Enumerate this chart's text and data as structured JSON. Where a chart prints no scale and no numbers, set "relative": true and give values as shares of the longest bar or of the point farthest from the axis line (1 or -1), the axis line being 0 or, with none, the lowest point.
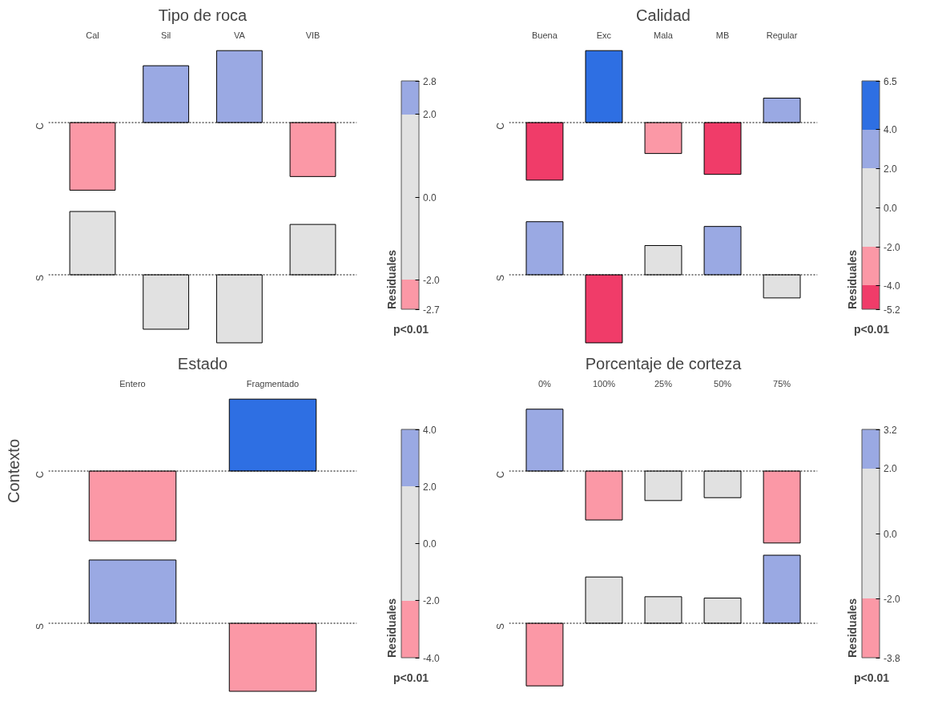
{
  "chart_data": [
    {
      "type": "bar",
      "title": "Tipo de roca",
      "relative": true,
      "categories": [
        "Cal",
        "Sil",
        "VA",
        "VIB"
      ],
      "series": [
        {
          "name": "C",
          "values": [
            -0.94,
            0.79,
            1,
            -0.75
          ],
          "colors": [
            "#fb98a6",
            "#9aa9e3",
            "#9aa9e3",
            "#fb98a6"
          ]
        }
      ],
      "ref_lines": [
        {
          "axis": "y",
          "value": 0,
          "line_style": "dotted",
          "color": "#000000"
        }
      ],
      "clabel": "Residuales",
      "clim": [
        -2.7,
        2.8
      ],
      "cticks": [
        {
          "value": -2.7,
          "label": "-2.7"
        },
        {
          "value": -2.0,
          "label": "-2.0"
        },
        {
          "value": 0,
          "label": "0.0"
        },
        {
          "value": 2.0,
          "label": "2.0"
        },
        {
          "value": 2.8,
          "label": "2.8"
        }
      ],
      "annotations": [
        "p<0.01"
      ]
    },
    {
      "type": "bar",
      "relative": true,
      "tick_labels": false,
      "categories": [
        null,
        null,
        null,
        null
      ],
      "series": [
        {
          "name": "S",
          "values": [
            0.93,
            -0.8,
            -1,
            0.74
          ],
          "colors": [
            "#e1e1e1",
            "#e1e1e1",
            "#e1e1e1",
            "#e1e1e1"
          ]
        }
      ],
      "ref_lines": [
        {
          "axis": "y",
          "value": 0,
          "line_style": "dotted",
          "color": "#000000"
        }
      ]
    },
    {
      "type": "bar",
      "title": "Calidad",
      "relative": true,
      "categories": [
        "Buena",
        "Exc",
        "Mala",
        "MB",
        "Regular"
      ],
      "series": [
        {
          "name": "C",
          "values": [
            -0.8,
            1,
            -0.43,
            -0.72,
            0.34
          ],
          "colors": [
            "#f03c69",
            "#2e6fe3",
            "#fb98a6",
            "#f03c69",
            "#9aa9e3"
          ]
        }
      ],
      "ref_lines": [
        {
          "axis": "y",
          "value": 0,
          "line_style": "dotted",
          "color": "#000000"
        }
      ],
      "clabel": "Residuales",
      "clim": [
        -5.2,
        6.5
      ],
      "cticks": [
        {
          "value": -5.2,
          "label": "-5.2"
        },
        {
          "value": -4.0,
          "label": "-4.0"
        },
        {
          "value": -2.0,
          "label": "-2.0"
        },
        {
          "value": 0,
          "label": "0.0"
        },
        {
          "value": 2.0,
          "label": "2.0"
        },
        {
          "value": 4.0,
          "label": "4.0"
        },
        {
          "value": 6.5,
          "label": "6.5"
        }
      ],
      "annotations": [
        "p<0.01"
      ]
    },
    {
      "type": "bar",
      "relative": true,
      "tick_labels": false,
      "categories": [
        null,
        null,
        null,
        null,
        null
      ],
      "series": [
        {
          "name": "S",
          "values": [
            0.78,
            -1,
            0.43,
            0.71,
            -0.34
          ],
          "colors": [
            "#9aa9e3",
            "#f03c69",
            "#e1e1e1",
            "#9aa9e3",
            "#e1e1e1"
          ]
        }
      ],
      "ref_lines": [
        {
          "axis": "y",
          "value": 0,
          "line_style": "dotted",
          "color": "#000000"
        }
      ]
    },
    {
      "type": "bar",
      "title": "Estado",
      "ylabel": "Contexto",
      "relative": true,
      "categories": [
        "Entero",
        "Fragmentado"
      ],
      "series": [
        {
          "name": "C",
          "values": [
            -0.97,
            1
          ],
          "colors": [
            "#fb98a6",
            "#2e6fe3"
          ]
        }
      ],
      "ref_lines": [
        {
          "axis": "y",
          "value": 0,
          "line_style": "dotted",
          "color": "#000000"
        }
      ],
      "clabel": "Residuales",
      "clim": [
        -4.0,
        4.0
      ],
      "cticks": [
        {
          "value": -4.0,
          "label": "-4.0"
        },
        {
          "value": -2.0,
          "label": "-2.0"
        },
        {
          "value": 0,
          "label": "0.0"
        },
        {
          "value": 2.0,
          "label": "2.0"
        },
        {
          "value": 4.0,
          "label": "4.0"
        }
      ],
      "annotations": [
        "p<0.01"
      ]
    },
    {
      "type": "bar",
      "relative": true,
      "tick_labels": false,
      "categories": [
        null,
        null
      ],
      "series": [
        {
          "name": "S",
          "values": [
            0.93,
            -1
          ],
          "colors": [
            "#9aa9e3",
            "#fb98a6"
          ]
        }
      ],
      "ref_lines": [
        {
          "axis": "y",
          "value": 0,
          "line_style": "dotted",
          "color": "#000000"
        }
      ]
    },
    {
      "type": "bar",
      "title": "Porcentaje de corteza",
      "relative": true,
      "categories": [
        "0%",
        "100%",
        "25%",
        "50%",
        "75%"
      ],
      "series": [
        {
          "name": "C",
          "values": [
            0.86,
            -0.68,
            -0.41,
            -0.37,
            -1
          ],
          "colors": [
            "#9aa9e3",
            "#fb98a6",
            "#e1e1e1",
            "#e1e1e1",
            "#fb98a6"
          ]
        }
      ],
      "ref_lines": [
        {
          "axis": "y",
          "value": 0,
          "line_style": "dotted",
          "color": "#000000"
        }
      ],
      "clabel": "Residuales",
      "clim": [
        -3.8,
        3.2
      ],
      "cticks": [
        {
          "value": -3.8,
          "label": "-3.8"
        },
        {
          "value": -2.0,
          "label": "-2.0"
        },
        {
          "value": 0,
          "label": "0.0"
        },
        {
          "value": 2.0,
          "label": "2.0"
        },
        {
          "value": 3.2,
          "label": "3.2"
        }
      ],
      "annotations": [
        "p<0.01"
      ]
    },
    {
      "type": "bar",
      "relative": true,
      "tick_labels": false,
      "categories": [
        null,
        null,
        null,
        null,
        null
      ],
      "series": [
        {
          "name": "S",
          "values": [
            -0.92,
            0.68,
            0.39,
            0.37,
            1
          ],
          "colors": [
            "#fb98a6",
            "#e1e1e1",
            "#e1e1e1",
            "#e1e1e1",
            "#9aa9e3"
          ]
        }
      ],
      "ref_lines": [
        {
          "axis": "y",
          "value": 0,
          "line_style": "dotted",
          "color": "#000000"
        }
      ]
    }
  ]
}
